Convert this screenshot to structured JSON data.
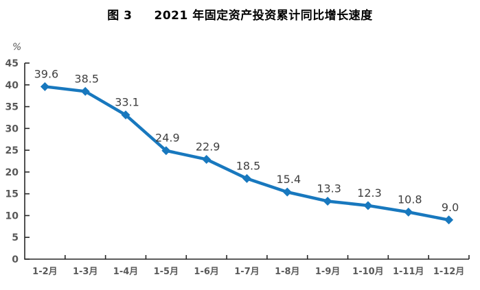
{
  "figure": {
    "label": "图 3",
    "title": "2021 年固定资产投资累计同比增长速度"
  },
  "chart_data": {
    "type": "line",
    "figure_label": "图 3",
    "title": "2021 年固定资产投资累计同比增长速度",
    "unit_label": "%",
    "categories": [
      "1-2月",
      "1-3月",
      "1-4月",
      "1-5月",
      "1-6月",
      "1-7月",
      "1-8月",
      "1-9月",
      "1-10月",
      "1-11月",
      "1-12月"
    ],
    "values": [
      39.6,
      38.5,
      33.1,
      24.9,
      22.9,
      18.5,
      15.4,
      13.3,
      12.3,
      10.8,
      9.0
    ],
    "series_name": "固定资产投资累计同比增长速度",
    "xlabel": "",
    "ylabel": "%",
    "ylim": [
      0,
      45
    ],
    "ytick_step": 5,
    "grid": false,
    "legend_position": "none",
    "marker": "diamond",
    "line_color": "#1878be",
    "tick_label_color": "#595959",
    "data_label_color": "#3f3f3f",
    "axis_color": "#262626"
  }
}
